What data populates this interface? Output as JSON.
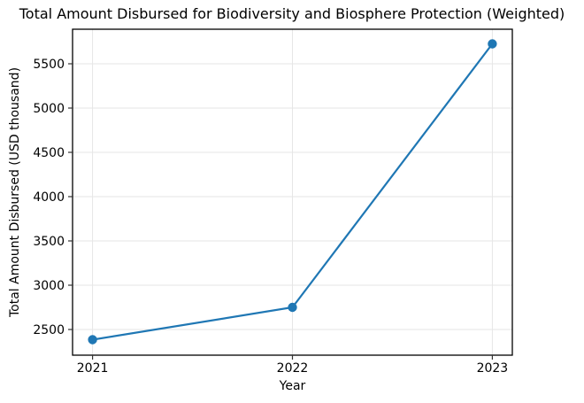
{
  "chart_data": {
    "type": "line",
    "title": "Total Amount Disbursed for Biodiversity and Biosphere Protection (Weighted)",
    "xlabel": "Year",
    "ylabel": "Total Amount Disbursed (USD thousand)",
    "x": [
      2021,
      2022,
      2023
    ],
    "series": [
      {
        "name": "Total Amount Disbursed (Weighted)",
        "values": [
          2385,
          2750,
          5725
        ]
      }
    ],
    "xticks": [
      2021,
      2022,
      2023
    ],
    "yticks": [
      2500,
      3000,
      3500,
      4000,
      4500,
      5000,
      5500
    ],
    "xlim": [
      2020.9,
      2023.1
    ],
    "ylim": [
      2210,
      5890
    ],
    "grid": true,
    "legend": "none",
    "marker": "o",
    "line_color": "#1f77b4",
    "grid_color": "#e6e6e6",
    "spine_color": "#000000",
    "tick_color": "#333333",
    "background_color": "#ffffff"
  }
}
